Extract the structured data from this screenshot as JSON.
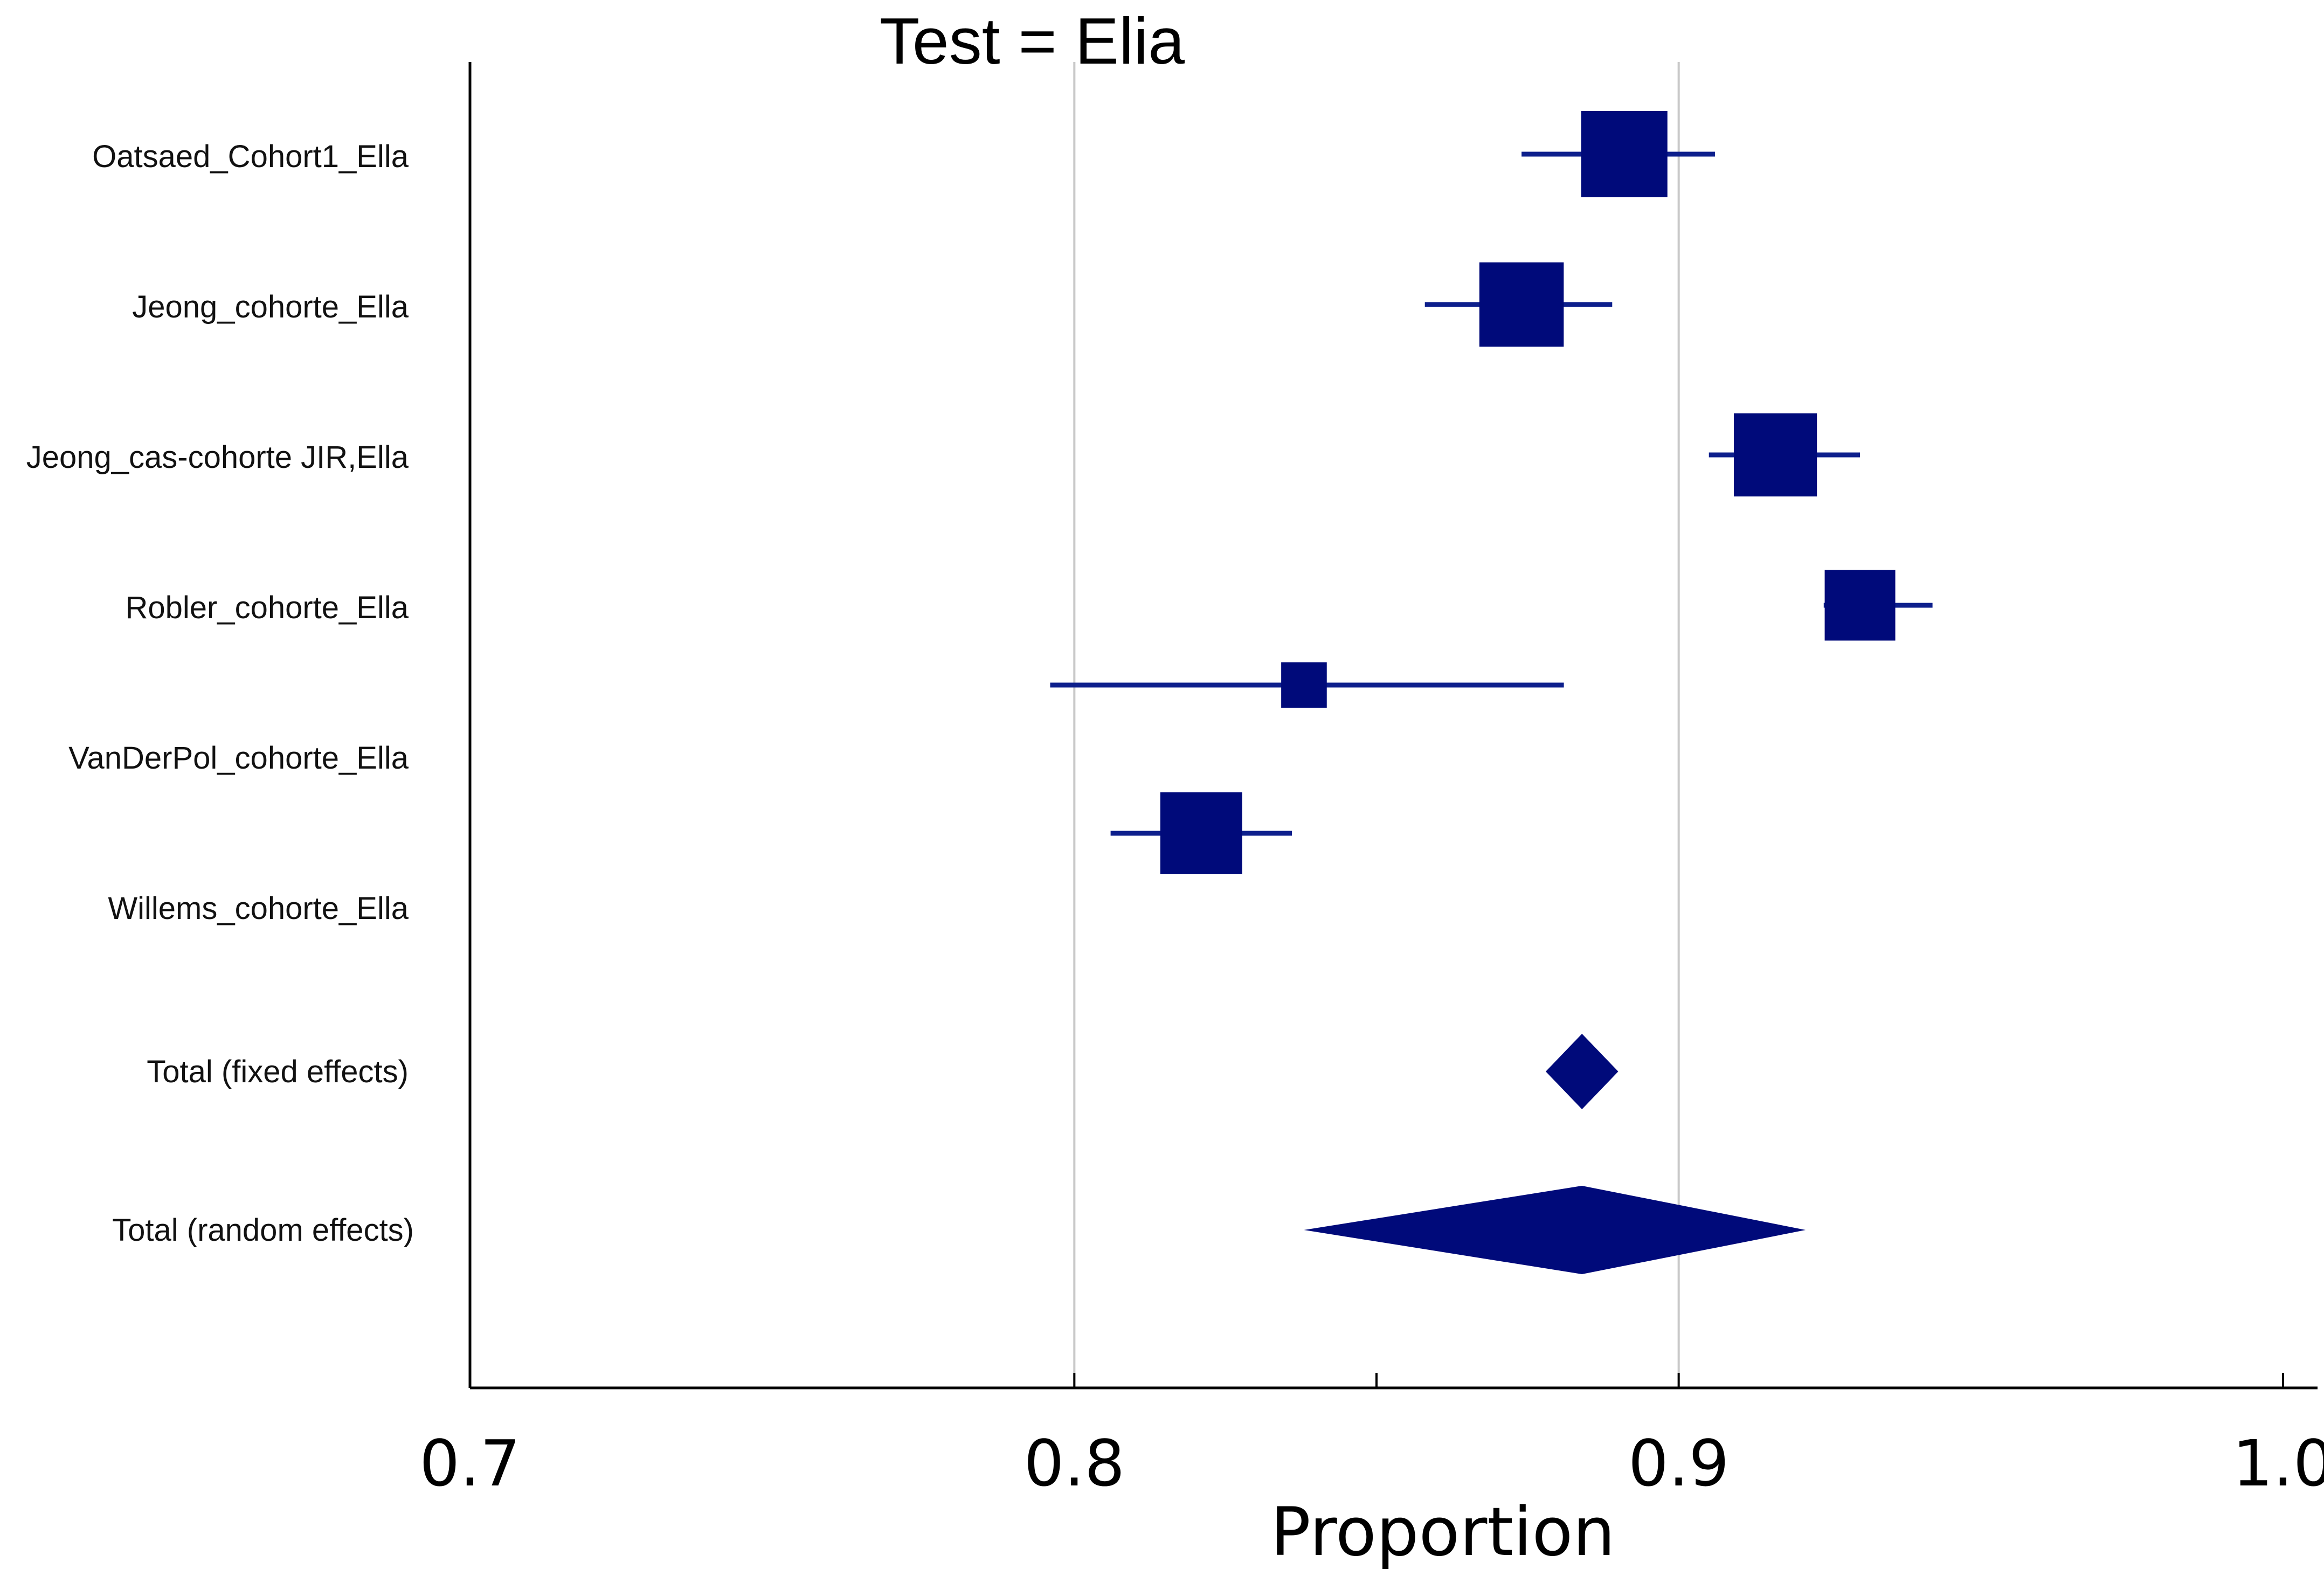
{
  "chart_data": {
    "type": "forest",
    "title": "Test = Elia",
    "xlabel": "Proportion",
    "ylabel": "",
    "xlim": [
      0.7,
      1.0
    ],
    "x_ticks": [
      0.7,
      0.8,
      0.9,
      1.0
    ],
    "x_tick_labels": [
      "0.7",
      "0.8",
      "0.9",
      "1.0"
    ],
    "minor_ticks": [
      0.85
    ],
    "grid_lines": [
      0.8,
      0.9
    ],
    "studies": [
      {
        "name": "Oatsaed_Cohort1_Ella",
        "estimate": 0.891,
        "lower": 0.874,
        "upper": 0.906,
        "weight": 1.0
      },
      {
        "name": "Jeong_cohorte_Ella",
        "estimate": 0.874,
        "lower": 0.858,
        "upper": 0.889,
        "weight": 0.97
      },
      {
        "name": "Jeong_cas-cohorte JIR,Ella",
        "estimate": 0.916,
        "lower": 0.905,
        "upper": 0.93,
        "weight": 0.95
      },
      {
        "name": "Robler_cohorte_Ella",
        "estimate": 0.93,
        "lower": 0.924,
        "upper": 0.942,
        "weight": 0.75
      },
      {
        "name": "VanDerPol_cohorte_Ella",
        "estimate": 0.838,
        "lower": 0.796,
        "upper": 0.881,
        "weight": 0.35
      },
      {
        "name": "Willems_cohorte_Ella",
        "estimate": 0.821,
        "lower": 0.806,
        "upper": 0.836,
        "weight": 0.93
      }
    ],
    "summaries": [
      {
        "name": "Total  (fixed effects)",
        "estimate": 0.884,
        "lower": 0.878,
        "upper": 0.89
      },
      {
        "name": "Total  (random effects)",
        "estimate": 0.884,
        "lower": 0.838,
        "upper": 0.921
      }
    ]
  }
}
